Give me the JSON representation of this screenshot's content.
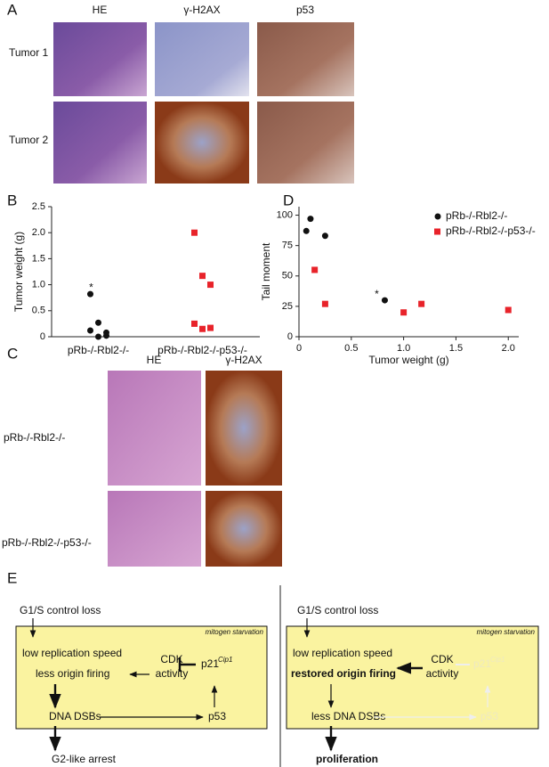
{
  "panel_labels": [
    "A",
    "B",
    "C",
    "D",
    "E"
  ],
  "panel_a": {
    "columns": [
      "HE",
      "γ-H2AX",
      "p53"
    ],
    "rows": [
      "Tumor 1",
      "Tumor 2"
    ]
  },
  "chart_data": [
    {
      "type": "strip",
      "ylabel": "Tumor weight (g)",
      "categories": [
        "pRb-/-Rbl2-/-",
        "pRb-/-Rbl2-/-p53-/-"
      ],
      "series": [
        {
          "color": "#111111",
          "marker": "circle",
          "values": [
            0.82,
            0.27,
            0.08,
            0.12,
            0,
            0.02
          ]
        },
        {
          "color": "#e8232a",
          "marker": "square",
          "values": [
            2.0,
            1.17,
            1.0,
            0.25,
            0.15,
            0.17
          ]
        }
      ],
      "ylim": [
        0,
        2.5
      ],
      "yticks": [
        0,
        0.5,
        {
          "value": 1,
          "label": "1.0"
        },
        1.5,
        {
          "value": 2,
          "label": "2.0"
        },
        2.5
      ],
      "annotations": [
        "*"
      ]
    },
    {
      "type": "scatter",
      "xlabel": "Tumor weight (g)",
      "ylabel": "Tail moment",
      "series": [
        {
          "name": "pRb-/-Rbl2-/-",
          "color": "#111111",
          "marker": "circle",
          "x": [
            0.07,
            0.11,
            0.25,
            0.82
          ],
          "values": [
            87,
            97,
            83,
            30
          ]
        },
        {
          "name": "pRb-/-Rbl2-/-p53-/-",
          "color": "#e8232a",
          "marker": "square",
          "x": [
            0.15,
            0.25,
            1.0,
            1.17,
            2.0
          ],
          "values": [
            55,
            27,
            20,
            27,
            22
          ]
        }
      ],
      "xlim": [
        0,
        2.1
      ],
      "xticks": [
        0,
        0.5,
        {
          "value": 1,
          "label": "1.0"
        },
        1.5,
        {
          "value": 2,
          "label": "2.0"
        }
      ],
      "ylim": [
        0,
        107
      ],
      "yticks": [
        0,
        25,
        50,
        75,
        100
      ],
      "legend": "upper right",
      "annotations": [
        "*"
      ]
    }
  ],
  "panel_c": {
    "columns": [
      "HE",
      "γ-H2AX"
    ],
    "rows": [
      "pRb-/-Rbl2-/-",
      "pRb-/-Rbl2-/-p53-/-"
    ]
  },
  "panel_e": {
    "left": {
      "top": "G1/S control loss",
      "note": "mitogen starvation",
      "speed": "low replication speed",
      "origin": "less origin firing",
      "cdk": "CDK",
      "activity": "activity",
      "p21": "p21",
      "p21_sup": "Cip1",
      "dsb": "DNA DSBs",
      "p53": "p53",
      "outcome": "G2-like arrest"
    },
    "right": {
      "top": "G1/S control loss",
      "note": "mitogen starvation",
      "speed": "low replication speed",
      "origin": "restored origin firing",
      "cdk": "CDK",
      "activity": "activity",
      "p21": "p21",
      "p21_sup": "Cip1",
      "dsb": "less DNA DSBs",
      "p53": "p53",
      "outcome": "proliferation"
    }
  }
}
